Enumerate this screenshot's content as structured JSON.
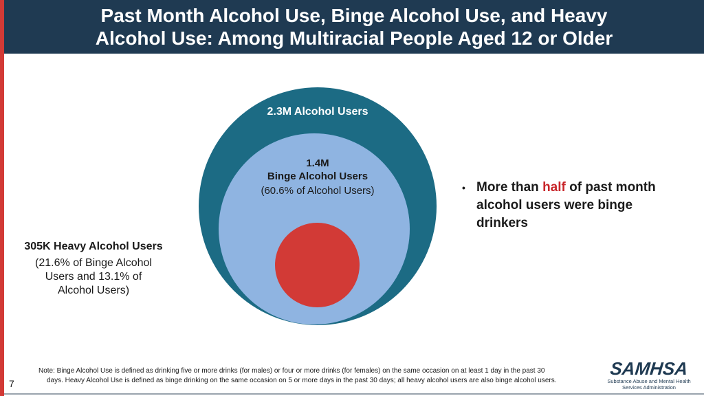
{
  "header": {
    "title_line1": "Past Month Alcohol Use, Binge Alcohol Use, and Heavy",
    "title_line2": "Alcohol Use: Among Multiracial People Aged 12 or Older"
  },
  "diagram": {
    "outer": {
      "label": "2.3M Alcohol Users",
      "color": "#1c6b84"
    },
    "middle": {
      "count": "1.4M",
      "label": "Binge Alcohol Users",
      "pct": "(60.6% of Alcohol Users)",
      "color": "#8fb4e1"
    },
    "inner": {
      "label": "305K Heavy Alcohol Users",
      "pct": "(21.6% of Binge Alcohol Users and 13.1% of Alcohol Users)",
      "color": "#d23a36"
    }
  },
  "bullet": {
    "before": "More than ",
    "highlight": "half",
    "after": " of past month alcohol users were binge drinkers"
  },
  "note": {
    "line1": "Note: Binge Alcohol Use is defined as drinking five or more drinks (for males) or four or more drinks (for females) on the same occasion on at least 1 day in the past 30",
    "line2": "days. Heavy Alcohol Use is defined as binge drinking on the same occasion on 5 or more days in the past 30 days; all heavy alcohol users are also binge alcohol users."
  },
  "page_number": "7",
  "logo": {
    "brand": "SAMHSA",
    "sub_line1": "Substance Abuse and Mental Health",
    "sub_line2": "Services Administration"
  },
  "colors": {
    "header_bg": "#1f3a52",
    "accent_red": "#d23a36",
    "highlight": "#c8262b"
  }
}
